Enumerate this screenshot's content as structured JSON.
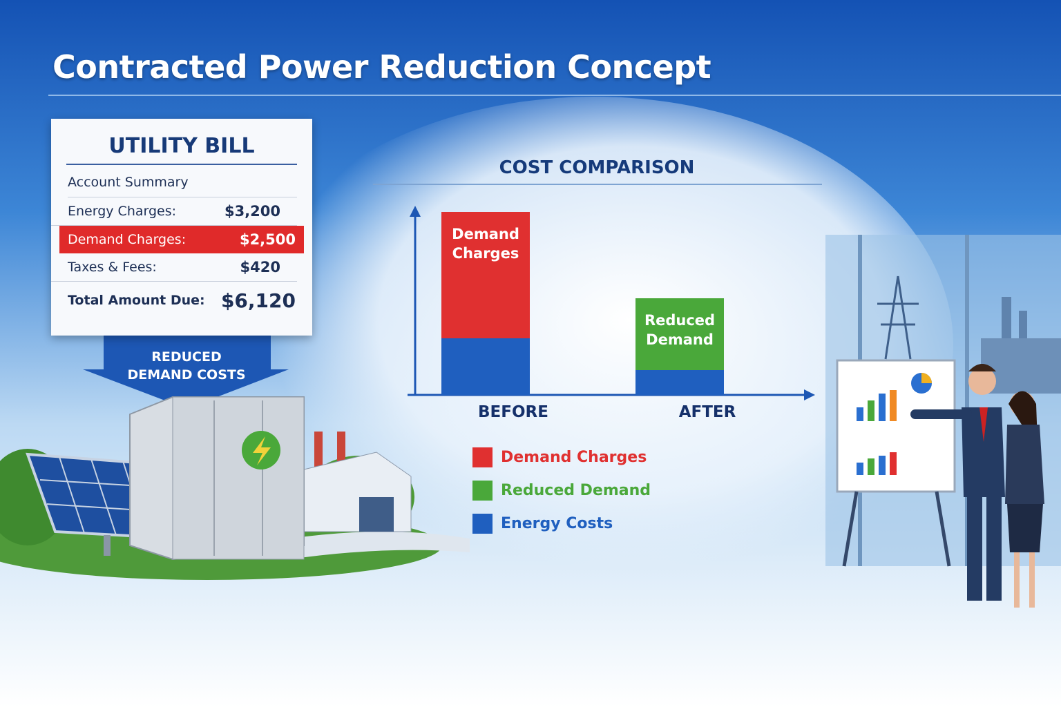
{
  "title": "Contracted Power Reduction Concept",
  "utility_bill": {
    "title": "UTILITY BILL",
    "section": "Account Summary",
    "rows": [
      {
        "label": "Energy Charges:",
        "amount": "$3,200"
      },
      {
        "label": "Demand Charges:",
        "amount": "$2,500",
        "highlight": true
      },
      {
        "label": "Taxes & Fees:",
        "amount": "$420"
      }
    ],
    "total": {
      "label": "Total Amount Due:",
      "amount": "$6,120"
    }
  },
  "callout": "REDUCED DEMAND COSTS",
  "chart_data": {
    "type": "bar",
    "stacked": true,
    "title": "COST COMPARISON",
    "categories": [
      "BEFORE",
      "AFTER"
    ],
    "series": [
      {
        "name": "Demand Charges",
        "color": "#e03030",
        "values": [
          183,
          null
        ]
      },
      {
        "name": "Reduced Demand",
        "color": "#4aa83a",
        "values": [
          null,
          104
        ]
      },
      {
        "name": "Energy Costs",
        "color": "#1f5fbf",
        "values": [
          82,
          36
        ]
      }
    ],
    "ylim": [
      0,
      280
    ]
  }
}
